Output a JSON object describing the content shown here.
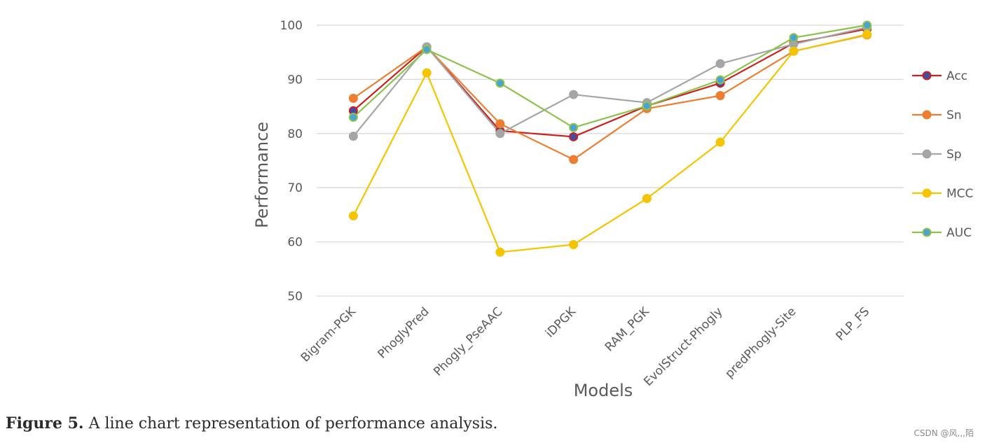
{
  "chart_data": {
    "type": "line",
    "title": "",
    "xlabel": "Models",
    "ylabel": "Performance",
    "ylim": [
      50,
      100
    ],
    "yticks": [
      50,
      60,
      70,
      80,
      90,
      100
    ],
    "grid": true,
    "legend_position": "right",
    "categories": [
      "Bigram-PGK",
      "PhoglyPred",
      "Phogly_PseAAC",
      "iDPGK",
      "RAM_PGK",
      "EvolStruct-Phogly",
      "predPhogly-Site",
      "PLP_FS"
    ],
    "series": [
      {
        "name": "Acc",
        "color": "#cc1f1f",
        "marker": "#3d4fa8",
        "values": [
          84.2,
          96.0,
          80.5,
          79.4,
          85.1,
          89.3,
          96.7,
          99.3
        ]
      },
      {
        "name": "Sn",
        "color": "#ed7d31",
        "marker": "#ed7d31",
        "values": [
          86.5,
          96.0,
          81.8,
          75.2,
          84.6,
          87.0,
          95.2,
          98.2
        ]
      },
      {
        "name": "Sp",
        "color": "#a5a5a5",
        "marker": "#a5a5a5",
        "values": [
          79.5,
          96.0,
          80.0,
          87.2,
          85.7,
          92.9,
          96.5,
          99.6
        ]
      },
      {
        "name": "MCC",
        "color": "#f5c400",
        "marker": "#f5c400",
        "values": [
          64.8,
          91.2,
          58.1,
          59.5,
          68.0,
          78.4,
          95.2,
          98.3
        ]
      },
      {
        "name": "AUC",
        "color": "#8bc34a",
        "marker": "#4aa3d8",
        "values": [
          83.0,
          95.5,
          89.3,
          81.1,
          85.1,
          89.9,
          97.7,
          100.0
        ]
      }
    ]
  },
  "caption": {
    "label": "Figure 5.",
    "text": " A line chart representation of performance analysis."
  },
  "watermark": "CSDN @风,,,陌"
}
